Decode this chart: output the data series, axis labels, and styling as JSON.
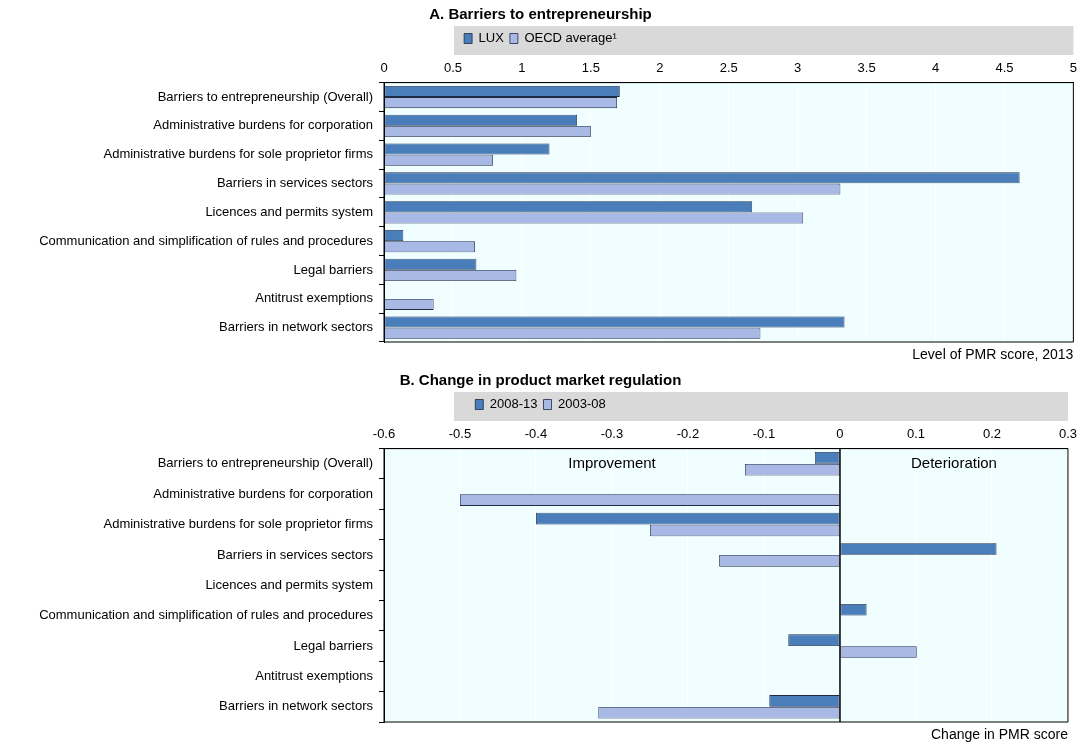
{
  "chart_data": [
    {
      "type": "bar",
      "orientation": "horizontal",
      "title": "A. Barriers to entrepreneurship",
      "xlabel": "Level of PMR score, 2013",
      "categories": [
        "Barriers to entrepreneurship (Overall)",
        "Administrative burdens for corporation",
        "Administrative burdens for sole proprietor firms",
        "Barriers in services sectors",
        "Licences and permits system",
        "Communication and simplification of rules and procedures",
        "Legal barriers",
        "Antitrust exemptions",
        "Barriers in network sectors"
      ],
      "series": [
        {
          "name": "LUX",
          "color": "#4a7ebb",
          "values": [
            1.71,
            1.4,
            1.2,
            4.61,
            2.67,
            0.14,
            0.67,
            null,
            3.34
          ]
        },
        {
          "name": "OECD average¹",
          "color": "#a9b9e6",
          "values": [
            1.69,
            1.5,
            0.79,
            3.31,
            3.04,
            0.66,
            0.96,
            0.36,
            2.73
          ]
        }
      ],
      "xlim": [
        0,
        5
      ],
      "xticks": [
        0,
        0.5,
        1,
        1.5,
        2,
        2.5,
        3,
        3.5,
        4,
        4.5,
        5
      ],
      "grid": "x",
      "legend": "top"
    },
    {
      "type": "bar",
      "orientation": "horizontal",
      "title": "B. Change in product market regulation",
      "xlabel": "Change in PMR score",
      "categories": [
        "Barriers to entrepreneurship (Overall)",
        "Administrative burdens for corporation",
        "Administrative burdens for sole proprietor firms",
        "Barriers in services sectors",
        "Licences and permits system",
        "Communication and simplification of rules and procedures",
        "Legal barriers",
        "Antitrust exemptions",
        "Barriers in network sectors"
      ],
      "series": [
        {
          "name": "2008-13",
          "color": "#4a7ebb",
          "values": [
            -0.033,
            null,
            -0.4,
            0.206,
            null,
            0.035,
            -0.068,
            null,
            -0.093
          ]
        },
        {
          "name": "2003-08",
          "color": "#a9b9e6",
          "values": [
            -0.125,
            -0.5,
            -0.25,
            -0.159,
            null,
            null,
            0.101,
            null,
            -0.318
          ]
        }
      ],
      "xlim": [
        -0.6,
        0.3
      ],
      "xticks": [
        -0.6,
        -0.5,
        -0.4,
        -0.3,
        -0.2,
        -0.1,
        0,
        0.1,
        0.2,
        0.3
      ],
      "grid": "x",
      "legend": "top",
      "annotations": [
        "Improvement",
        "Deterioration"
      ]
    }
  ]
}
